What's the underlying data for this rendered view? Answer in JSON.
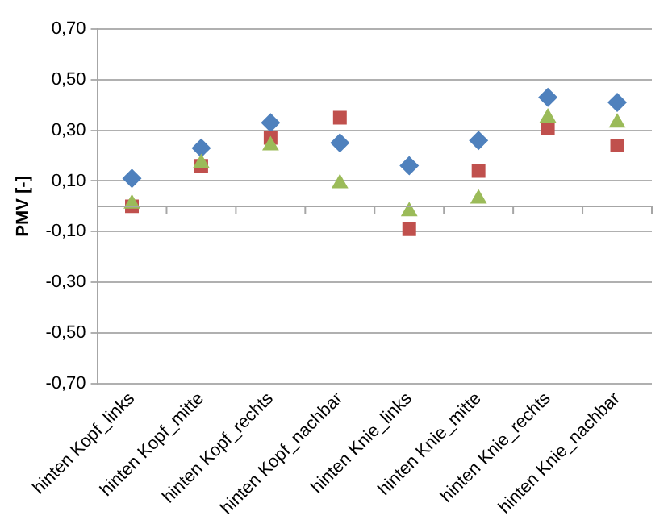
{
  "chart_data": {
    "type": "scatter",
    "ylabel": "PMV [-]",
    "categories": [
      "hinten Kopf_links",
      "hinten Kopf_mitte",
      "hinten Kopf_rechts",
      "hinten Kopf_nachbar",
      "hinten Knie_links",
      "hinten Knie_mitte",
      "hinten Knie_rechts",
      "hinten Knie_nachbar"
    ],
    "series": [
      {
        "color": "#4f81bd",
        "marker": "diamond",
        "values": [
          0.11,
          0.23,
          0.33,
          0.25,
          0.16,
          0.26,
          0.43,
          0.41
        ]
      },
      {
        "color": "#c0504d",
        "marker": "square",
        "values": [
          0.0,
          0.16,
          0.27,
          0.35,
          -0.09,
          0.14,
          0.31,
          0.24
        ]
      },
      {
        "color": "#9bbb59",
        "marker": "triangle",
        "values": [
          0.01,
          0.17,
          0.24,
          0.09,
          -0.02,
          0.03,
          0.35,
          0.33
        ]
      }
    ],
    "ylim": [
      -0.7,
      0.7
    ],
    "yticks": [
      {
        "value": -0.7,
        "label": "-0,70"
      },
      {
        "value": -0.5,
        "label": "-0,50"
      },
      {
        "value": -0.3,
        "label": "-0,30"
      },
      {
        "value": -0.1,
        "label": "-0,10"
      },
      {
        "value": 0.1,
        "label": "0,10"
      },
      {
        "value": 0.3,
        "label": "0,30"
      },
      {
        "value": 0.5,
        "label": "0,50"
      },
      {
        "value": 0.7,
        "label": "0,70"
      }
    ],
    "grid": "y",
    "legend": false
  }
}
